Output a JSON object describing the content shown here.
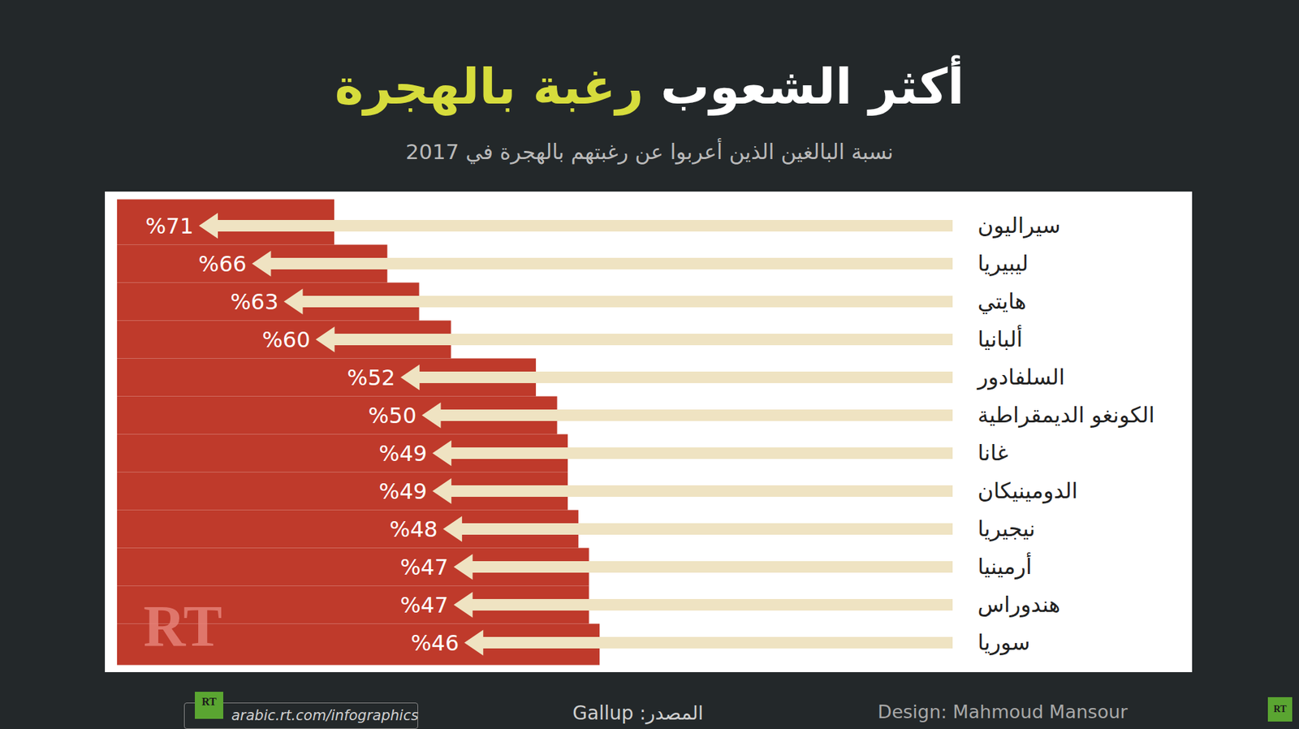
{
  "chart_data": {
    "type": "bar",
    "orientation": "horizontal",
    "title": "أكثر الشعوب رغبة بالهجرة",
    "subtitle": "نسبة البالغين الذين أعربوا عن رغبتهم بالهجرة في 2017",
    "categories": [
      "سيراليون",
      "ليبيريا",
      "هايتي",
      "ألبانيا",
      "السلفادور",
      "الكونغو الديمقراطية",
      "غانا",
      "الدومينيكان",
      "نيجيريا",
      "أرمينيا",
      "هندوراس",
      "سوريا"
    ],
    "values": [
      71,
      66,
      63,
      60,
      52,
      50,
      49,
      49,
      48,
      47,
      47,
      46
    ],
    "value_labels": [
      "%71",
      "%66",
      "%63",
      "%60",
      "%52",
      "%50",
      "%49",
      "%49",
      "%48",
      "%47",
      "%47",
      "%46"
    ],
    "data_labels": true,
    "tick_labels": "y",
    "color": "#efe3c2",
    "source": "المصدر: Gallup",
    "credit": "Design: Mahmoud Mansour",
    "url": "arabic.rt.com/infographics",
    "watermark": "RT"
  }
}
